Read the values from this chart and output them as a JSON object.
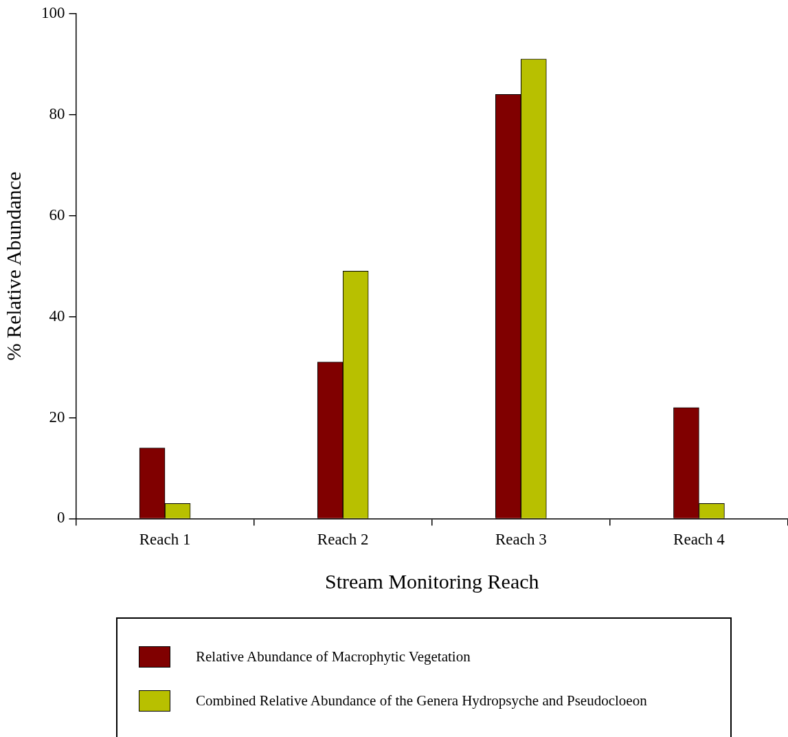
{
  "chart_data": {
    "type": "bar",
    "xlabel": "Stream Monitoring Reach",
    "ylabel": "% Relative Abundance",
    "categories": [
      "Reach 1",
      "Reach 2",
      "Reach 3",
      "Reach 4"
    ],
    "series": [
      {
        "name": "Relative Abundance of Macrophytic Vegetation",
        "color": "#800000",
        "values": [
          14,
          31,
          84,
          22
        ]
      },
      {
        "name": "Combined Relative Abundance of the Genera Hydropsyche and Pseudocloeon",
        "color": "#b8c000",
        "values": [
          3,
          49,
          91,
          3
        ]
      }
    ],
    "ylim": [
      0,
      100
    ],
    "yticks": [
      0,
      20,
      40,
      60,
      80,
      100
    ],
    "legend": "bottom"
  }
}
